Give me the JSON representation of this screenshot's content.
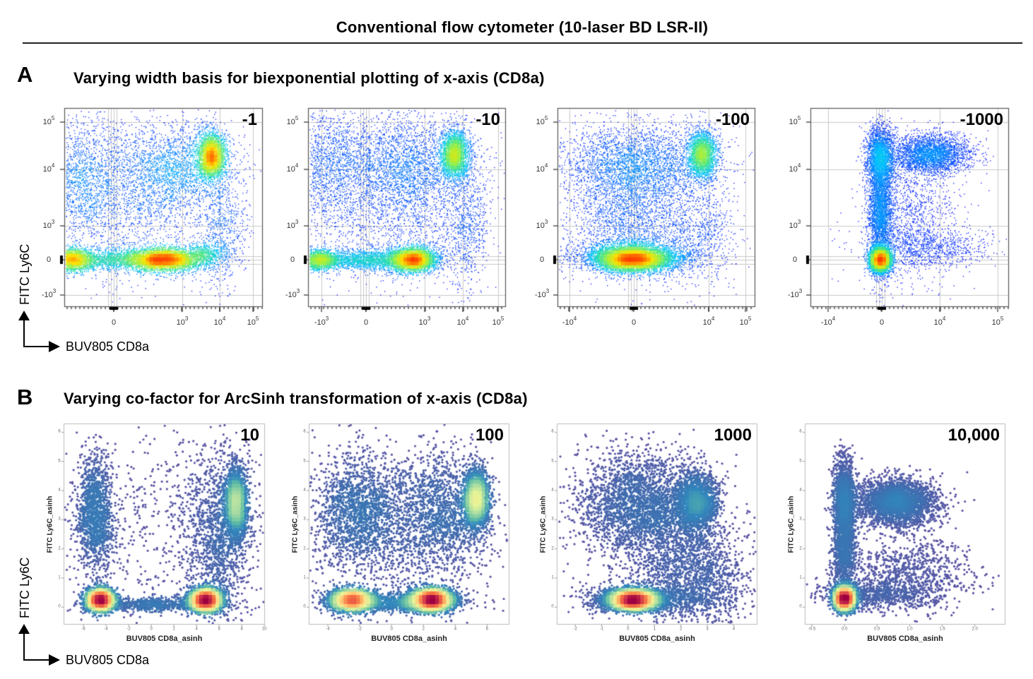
{
  "figure": {
    "title": "Conventional flow cytometer (10-laser BD LSR-II)",
    "panel_a": {
      "letter": "A",
      "title": "Varying width basis for biexponential plotting of x-axis (CD8a)",
      "x_axis_label": "BUV805 CD8a",
      "y_axis_label": "FITC Ly6C"
    },
    "panel_b": {
      "letter": "B",
      "title": "Varying co-factor for ArcSinh transformation of x-axis (CD8a)",
      "x_axis_label": "BUV805 CD8a",
      "y_axis_label": "FITC Ly6C"
    }
  },
  "colors": {
    "panel_a_density": [
      "#0000ff",
      "#0050ff",
      "#00c0ff",
      "#30e0a0",
      "#a0f040",
      "#ffe000",
      "#ff4000"
    ],
    "panel_b_density": [
      "#5e4fa2",
      "#3f6fb0",
      "#3288bd",
      "#66c2a5",
      "#abdda4",
      "#e6f598",
      "#fee08b",
      "#fdae61",
      "#f46d43",
      "#d53e4f",
      "#9e0142"
    ],
    "grid": "#c8c8c8"
  },
  "chart_data": [
    {
      "panel": "A",
      "type": "scatter",
      "annotation": "-1",
      "xlabel": "",
      "ylabel": "",
      "xticks": [
        "0",
        "10^3",
        "10^4",
        "10^5"
      ],
      "yticks": [
        "10^5",
        "10^4",
        "10^3",
        "0",
        "-10^3"
      ]
    },
    {
      "panel": "A",
      "type": "scatter",
      "annotation": "-10",
      "xlabel": "",
      "ylabel": "",
      "xticks": [
        "-10^3",
        "0",
        "10^3",
        "10^4",
        "10^5"
      ],
      "yticks": [
        "10^5",
        "10^4",
        "10^3",
        "0",
        "-10^3"
      ]
    },
    {
      "panel": "A",
      "type": "scatter",
      "annotation": "-100",
      "xlabel": "",
      "ylabel": "",
      "xticks": [
        "-10^4",
        "0",
        "10^4",
        "10^5"
      ],
      "yticks": [
        "10^5",
        "10^4",
        "10^3",
        "0",
        "-10^3"
      ]
    },
    {
      "panel": "A",
      "type": "scatter",
      "annotation": "-1000",
      "xlabel": "",
      "ylabel": "",
      "xticks": [
        "-10^4",
        "0",
        "10^4",
        "10^5"
      ],
      "yticks": [
        "10^5",
        "10^4",
        "10^3",
        "0",
        "-10^3"
      ]
    },
    {
      "panel": "B",
      "type": "scatter",
      "annotation": "10",
      "xlabel": "BUV805 CD8a_asinh",
      "ylabel": "FITC Ly6C_asinh",
      "xlim": [
        -7.75,
        10.05
      ],
      "ylim": [
        -0.6,
        6.3
      ],
      "xticks": [
        "-6",
        "-4",
        "-2",
        "0",
        "2",
        "4",
        "6",
        "8",
        "10"
      ],
      "yticks": [
        "0",
        "1",
        "2",
        "3",
        "4",
        "5",
        "6"
      ],
      "clusters": [
        [
          -4.5,
          0.25,
          0.6,
          0.18,
          0.22
        ],
        [
          4.8,
          0.25,
          0.7,
          0.18,
          0.25
        ],
        [
          7.5,
          3.6,
          0.45,
          0.6,
          0.15
        ],
        [
          -5,
          3.2,
          0.8,
          1.0,
          0.1
        ],
        [
          0,
          0.1,
          3,
          0.12,
          0.05
        ],
        [
          6,
          2.5,
          1.5,
          1.5,
          0.1
        ],
        [
          0,
          2.5,
          5,
          2,
          0.04
        ]
      ]
    },
    {
      "panel": "B",
      "type": "scatter",
      "annotation": "100",
      "xlabel": "BUV805 CD8a_asinh",
      "ylabel": "FITC Ly6C_asinh",
      "xlim": [
        -5.2,
        7.4
      ],
      "ylim": [
        -0.6,
        6.3
      ],
      "xticks": [
        "-4",
        "-2",
        "0",
        "2",
        "4",
        "6"
      ],
      "yticks": [
        "0",
        "1",
        "2",
        "3",
        "4",
        "5",
        "6"
      ],
      "clusters": [
        [
          -2.5,
          0.25,
          0.7,
          0.18,
          0.2
        ],
        [
          2.5,
          0.25,
          0.7,
          0.18,
          0.25
        ],
        [
          5.3,
          3.7,
          0.4,
          0.5,
          0.15
        ],
        [
          -2,
          3.3,
          1.5,
          1,
          0.12
        ],
        [
          3,
          3.3,
          1.5,
          1,
          0.1
        ],
        [
          0,
          0.15,
          2,
          0.15,
          0.08
        ],
        [
          1,
          2,
          3,
          1.5,
          0.06
        ]
      ]
    },
    {
      "panel": "B",
      "type": "scatter",
      "annotation": "1000",
      "xlabel": "BUV805 CD8a_asinh",
      "ylabel": "FITC Ly6C_asinh",
      "xlim": [
        -2.7,
        4.9
      ],
      "ylim": [
        -0.6,
        6.3
      ],
      "xticks": [
        "-2",
        "-1",
        "0",
        "1",
        "2",
        "3",
        "4"
      ],
      "yticks": [
        "0",
        "1",
        "2",
        "3",
        "4",
        "5",
        "6"
      ],
      "clusters": [
        [
          0.2,
          0.25,
          0.5,
          0.15,
          0.42
        ],
        [
          2.6,
          3.6,
          0.4,
          0.5,
          0.12
        ],
        [
          0.5,
          3.5,
          1.2,
          0.9,
          0.2
        ],
        [
          2,
          1.5,
          1,
          1,
          0.08
        ],
        [
          1,
          0.3,
          1.5,
          0.3,
          0.06
        ],
        [
          3,
          1,
          0.8,
          0.8,
          0.04
        ]
      ]
    },
    {
      "panel": "B",
      "type": "scatter",
      "annotation": "10,000",
      "xlabel": "BUV805 CD8a_asinh",
      "ylabel": "FITC Ly6C_asinh",
      "xlim": [
        -0.61,
        2.47
      ],
      "ylim": [
        -0.6,
        6.3
      ],
      "xticks": [
        "-0.5",
        "0.0",
        "0.5",
        "1.0",
        "1.5",
        "2.0"
      ],
      "yticks": [
        "0",
        "1",
        "2",
        "3",
        "4",
        "5",
        "6"
      ],
      "clusters": [
        [
          0,
          0.3,
          0.07,
          0.2,
          0.42
        ],
        [
          0,
          3.5,
          0.08,
          0.8,
          0.15
        ],
        [
          0.8,
          3.6,
          0.3,
          0.4,
          0.22
        ],
        [
          0.5,
          0.4,
          0.45,
          0.25,
          0.06
        ],
        [
          1,
          1.2,
          0.5,
          0.6,
          0.06
        ],
        [
          0,
          1.8,
          0.08,
          0.6,
          0.06
        ]
      ]
    }
  ]
}
